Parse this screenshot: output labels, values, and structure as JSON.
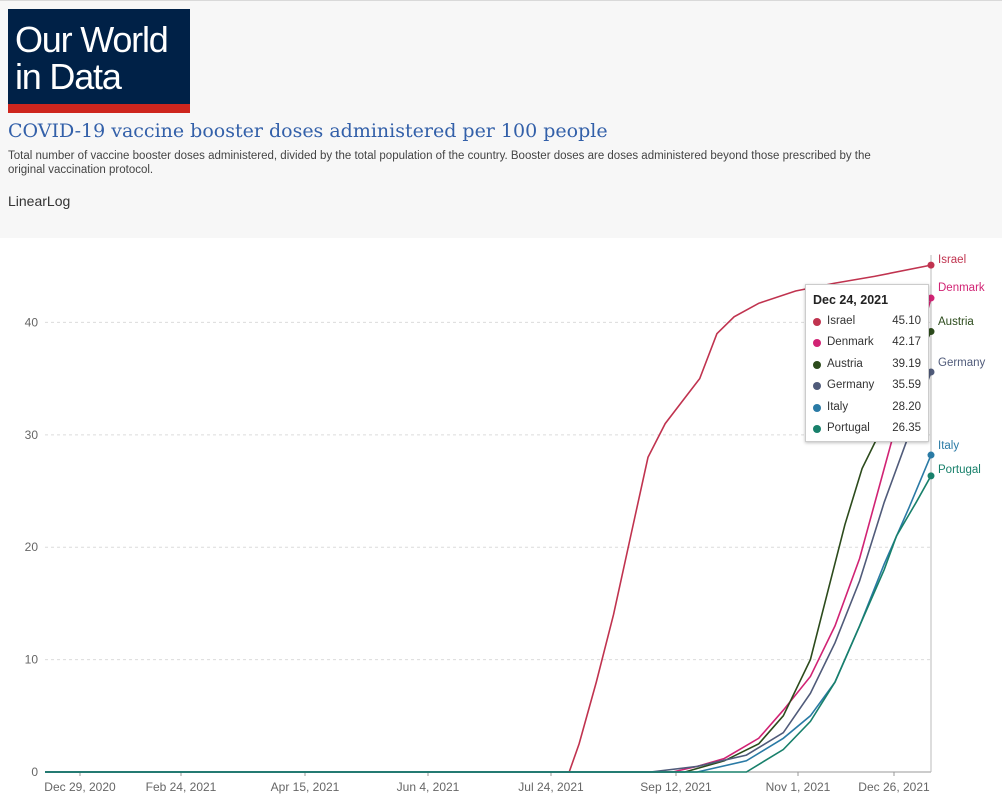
{
  "logo": {
    "text": "Our World\nin Data"
  },
  "header": {
    "title": "COVID-19 vaccine booster doses administered per 100 people",
    "subtitle": "Total number of vaccine booster doses administered, divided by the total population of the country. Booster doses are doses administered beyond those prescribed by the original vaccination protocol."
  },
  "scale_toggle": {
    "linear": "Linear",
    "log": "Log"
  },
  "tooltip": {
    "date": "Dec 24, 2021",
    "rows": [
      {
        "name": "Israel",
        "value": "45.10"
      },
      {
        "name": "Denmark",
        "value": "42.17"
      },
      {
        "name": "Austria",
        "value": "39.19"
      },
      {
        "name": "Germany",
        "value": "35.59"
      },
      {
        "name": "Italy",
        "value": "28.20"
      },
      {
        "name": "Portugal",
        "value": "26.35"
      }
    ]
  },
  "chart_data": {
    "type": "line",
    "title": "COVID-19 vaccine booster doses administered per 100 people",
    "ylim": [
      0,
      46
    ],
    "xlim": [
      "2020-12-29",
      "2021-12-24"
    ],
    "yticks": [
      0,
      10,
      20,
      30,
      40
    ],
    "xticks": [
      "Dec 29, 2020",
      "Feb 24, 2021",
      "Apr 15, 2021",
      "Jun 4, 2021",
      "Jul 24, 2021",
      "Sep 12, 2021",
      "Nov 1, 2021",
      "Dec 26, 2021"
    ],
    "grid": "horizontal dashed",
    "legend": "line-end labels right",
    "series": [
      {
        "name": "Israel",
        "color": "#c0334f",
        "points": [
          [
            "2021-07-30",
            0
          ],
          [
            "2021-08-03",
            2.5
          ],
          [
            "2021-08-10",
            8
          ],
          [
            "2021-08-17",
            14
          ],
          [
            "2021-08-24",
            21
          ],
          [
            "2021-08-31",
            28
          ],
          [
            "2021-09-07",
            31
          ],
          [
            "2021-09-14",
            33
          ],
          [
            "2021-09-21",
            35
          ],
          [
            "2021-09-28",
            39
          ],
          [
            "2021-10-05",
            40.5
          ],
          [
            "2021-10-15",
            41.7
          ],
          [
            "2021-10-30",
            42.8
          ],
          [
            "2021-11-15",
            43.5
          ],
          [
            "2021-12-01",
            44.1
          ],
          [
            "2021-12-24",
            45.1
          ]
        ]
      },
      {
        "name": "Denmark",
        "color": "#d12374",
        "points": [
          [
            "2021-09-10",
            0
          ],
          [
            "2021-09-20",
            0.5
          ],
          [
            "2021-10-01",
            1.2
          ],
          [
            "2021-10-15",
            3
          ],
          [
            "2021-10-25",
            5.5
          ],
          [
            "2021-11-05",
            8.5
          ],
          [
            "2021-11-15",
            13
          ],
          [
            "2021-11-25",
            19
          ],
          [
            "2021-12-05",
            27
          ],
          [
            "2021-12-15",
            35
          ],
          [
            "2021-12-24",
            42.17
          ]
        ]
      },
      {
        "name": "Austria",
        "color": "#2c4b1c",
        "points": [
          [
            "2021-09-15",
            0
          ],
          [
            "2021-10-01",
            1
          ],
          [
            "2021-10-15",
            2.5
          ],
          [
            "2021-10-25",
            5
          ],
          [
            "2021-11-05",
            10
          ],
          [
            "2021-11-12",
            16
          ],
          [
            "2021-11-19",
            22
          ],
          [
            "2021-11-26",
            27
          ],
          [
            "2021-12-05",
            31
          ],
          [
            "2021-12-15",
            35
          ],
          [
            "2021-12-24",
            39.19
          ]
        ]
      },
      {
        "name": "Germany",
        "color": "#505b7a",
        "points": [
          [
            "2021-09-01",
            0
          ],
          [
            "2021-09-20",
            0.5
          ],
          [
            "2021-10-10",
            1.5
          ],
          [
            "2021-10-25",
            3.5
          ],
          [
            "2021-11-05",
            7
          ],
          [
            "2021-11-15",
            11.5
          ],
          [
            "2021-11-25",
            17
          ],
          [
            "2021-12-05",
            24
          ],
          [
            "2021-12-15",
            30
          ],
          [
            "2021-12-24",
            35.59
          ]
        ]
      },
      {
        "name": "Italy",
        "color": "#2a7aa5",
        "points": [
          [
            "2021-09-20",
            0
          ],
          [
            "2021-10-10",
            1
          ],
          [
            "2021-10-25",
            3
          ],
          [
            "2021-11-05",
            5
          ],
          [
            "2021-11-15",
            8
          ],
          [
            "2021-11-25",
            13
          ],
          [
            "2021-12-05",
            18.5
          ],
          [
            "2021-12-15",
            23.5
          ],
          [
            "2021-12-24",
            28.2
          ]
        ]
      },
      {
        "name": "Portugal",
        "color": "#18806b",
        "points": [
          [
            "2021-10-10",
            0
          ],
          [
            "2021-10-25",
            2
          ],
          [
            "2021-11-05",
            4.5
          ],
          [
            "2021-11-15",
            8
          ],
          [
            "2021-11-25",
            13
          ],
          [
            "2021-12-05",
            18
          ],
          [
            "2021-12-10",
            21
          ],
          [
            "2021-12-18",
            24
          ],
          [
            "2021-12-24",
            26.35
          ]
        ]
      }
    ]
  }
}
